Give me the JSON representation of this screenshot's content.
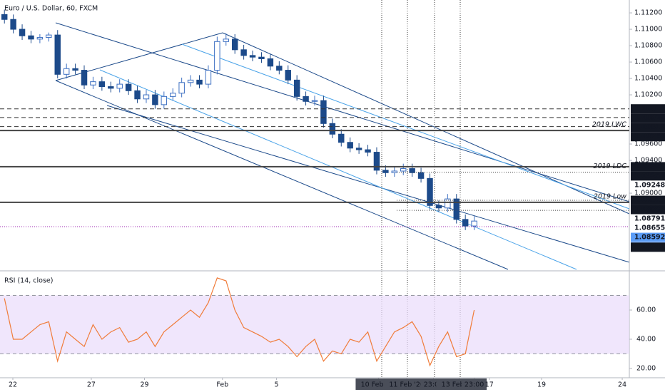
{
  "chart_data": [
    {
      "type": "candlestick",
      "title": "Euro / U.S. Dollar, 60, FXCM",
      "up_color": "#3c6fc2",
      "down_color": "#1c4a8a",
      "open": [
        1.1118,
        1.1112,
        1.11,
        1.1092,
        1.1088,
        1.109,
        1.1093,
        1.1045,
        1.1052,
        1.105,
        1.1032,
        1.1036,
        1.103,
        1.1028,
        1.1033,
        1.1025,
        1.1015,
        1.102,
        1.1008,
        1.1018,
        1.1022,
        1.1035,
        1.1038,
        1.1033,
        1.105,
        1.1085,
        1.1088,
        1.1075,
        1.1068,
        1.1066,
        1.1064,
        1.1055,
        1.105,
        1.1038,
        1.1018,
        1.1012,
        1.1013,
        1.0985,
        1.0972,
        1.0962,
        1.0955,
        1.0953,
        1.095,
        1.0928,
        1.0925,
        1.0927,
        1.093,
        1.0925,
        1.0918,
        1.0885,
        1.0882,
        1.0893,
        1.0868,
        1.086
      ],
      "high": [
        1.1124,
        1.1118,
        1.1106,
        1.1098,
        1.1094,
        1.1096,
        1.1099,
        1.1058,
        1.1058,
        1.1056,
        1.1042,
        1.1042,
        1.1036,
        1.1039,
        1.1039,
        1.1031,
        1.1026,
        1.1026,
        1.1024,
        1.1028,
        1.1041,
        1.1044,
        1.1044,
        1.1056,
        1.1091,
        1.1095,
        1.1094,
        1.1081,
        1.1074,
        1.1072,
        1.107,
        1.1061,
        1.1056,
        1.1044,
        1.1024,
        1.1019,
        1.1019,
        1.0991,
        1.0978,
        1.0968,
        1.0961,
        1.0959,
        1.0956,
        1.0934,
        1.0933,
        1.0936,
        1.0936,
        1.0931,
        1.0924,
        1.0891,
        1.0899,
        1.0899,
        1.0874,
        1.0872
      ],
      "low": [
        1.1107,
        1.1095,
        1.1087,
        1.1083,
        1.1083,
        1.1085,
        1.104,
        1.104,
        1.1045,
        1.1027,
        1.1027,
        1.1025,
        1.1023,
        1.1023,
        1.102,
        1.101,
        1.101,
        1.1003,
        1.1003,
        1.1013,
        1.1017,
        1.103,
        1.1028,
        1.1028,
        1.1045,
        1.108,
        1.107,
        1.1063,
        1.1061,
        1.1059,
        1.105,
        1.1045,
        1.1033,
        1.1013,
        1.1007,
        1.1007,
        1.098,
        1.0967,
        1.0957,
        1.095,
        1.0948,
        1.0945,
        1.0923,
        1.092,
        1.092,
        1.0922,
        1.092,
        1.0913,
        1.088,
        1.0877,
        1.0877,
        1.0863,
        1.0855,
        1.0855
      ],
      "close": [
        1.1112,
        1.11,
        1.1092,
        1.1088,
        1.109,
        1.1093,
        1.1045,
        1.1052,
        1.105,
        1.1032,
        1.1036,
        1.103,
        1.1028,
        1.1033,
        1.1025,
        1.1015,
        1.102,
        1.1008,
        1.1018,
        1.1022,
        1.1035,
        1.1038,
        1.1033,
        1.105,
        1.1085,
        1.1088,
        1.1075,
        1.1068,
        1.1066,
        1.1064,
        1.1055,
        1.105,
        1.1038,
        1.1018,
        1.1012,
        1.1013,
        1.0985,
        1.0972,
        1.0962,
        1.0955,
        1.0953,
        1.095,
        1.0928,
        1.0925,
        1.0927,
        1.093,
        1.0925,
        1.0918,
        1.0885,
        1.0882,
        1.0893,
        1.0868,
        1.086,
        1.0866
      ],
      "xlim": [
        -0.5,
        70.5
      ],
      "ylim": [
        1.0807,
        1.11357
      ],
      "yticks": [
        {
          "value": 1.112,
          "label": "1.11200"
        },
        {
          "value": 1.11,
          "label": "1.11000"
        },
        {
          "value": 1.108,
          "label": "1.10800"
        },
        {
          "value": 1.106,
          "label": "1.10600"
        },
        {
          "value": 1.104,
          "label": "1.10400"
        },
        {
          "value": 1.102,
          "label": "1.10200"
        },
        {
          "value": 1.096,
          "label": "1.09600"
        },
        {
          "value": 1.094,
          "label": "1.09400"
        },
        {
          "value": 1.09,
          "label": "1.09000"
        }
      ],
      "levels": [
        {
          "value": 1.10029,
          "line": "dashed",
          "color": "#131722"
        },
        {
          "value": 1.09923,
          "line": "dashed",
          "color": "#131722"
        },
        {
          "value": 1.09812,
          "line": "dashed",
          "color": "#131722"
        },
        {
          "value": 1.09765,
          "line": "solid",
          "color": "#131722",
          "note": "2019 LWC"
        },
        {
          "value": 1.09323,
          "line": "solid",
          "color": "#131722"
        },
        {
          "value": 1.09256,
          "line": "dotted",
          "color": "#131722",
          "note": "2019 LDC"
        },
        {
          "value": 1.09248,
          "line": "none",
          "color": "#ffffff"
        },
        {
          "value": 1.08913,
          "line": "dotted",
          "color": "#131722"
        },
        {
          "value": 1.08889,
          "line": "solid",
          "color": "#131722",
          "note": "2019 Low"
        },
        {
          "value": 1.08791,
          "line": "dotted",
          "color": "#ffffff"
        },
        {
          "value": 1.08655,
          "line": "none",
          "color": "#ffffff"
        },
        {
          "value": 1.08592,
          "line": "current",
          "color": "#5b9cf6",
          "note": "02:02"
        },
        {
          "value": 1.08341,
          "line": "none",
          "color": "#131722"
        }
      ]
    },
    {
      "type": "line",
      "title": "RSI (14, close)",
      "color": "#f07c3a",
      "values": [
        68,
        40,
        40,
        45,
        50,
        52,
        25,
        45,
        40,
        35,
        50,
        40,
        45,
        48,
        38,
        40,
        45,
        35,
        45,
        50,
        55,
        60,
        55,
        65,
        82,
        80,
        60,
        48,
        45,
        42,
        38,
        40,
        35,
        28,
        35,
        40,
        25,
        32,
        30,
        40,
        38,
        45,
        25,
        35,
        45,
        48,
        52,
        42,
        22,
        35,
        45,
        28,
        30,
        60
      ],
      "band": [
        30,
        70
      ],
      "band_color": "#e9dcfb",
      "xlim": [
        -0.5,
        70.5
      ],
      "ylim": [
        14.6,
        84.4
      ],
      "yticks": [
        {
          "value": 60,
          "label": "60.00"
        },
        {
          "value": 40,
          "label": "40.00"
        },
        {
          "value": 20,
          "label": "20.00"
        }
      ],
      "xticks": [
        {
          "value": 0.95,
          "label": "22"
        },
        {
          "value": 9.8,
          "label": "27"
        },
        {
          "value": 15.8,
          "label": "29"
        },
        {
          "value": 24.6,
          "label": "Feb"
        },
        {
          "value": 30.7,
          "label": "5"
        },
        {
          "value": 42.2,
          "label": "10 Feb '20",
          "boxed": true
        },
        {
          "value": 45.4,
          "label": "11 Feb '20",
          "boxed": true
        },
        {
          "value": 48.4,
          "label": "23:00",
          "boxed": true
        },
        {
          "value": 51.3,
          "label": "13 Feb '20",
          "boxed": true
        },
        {
          "value": 53,
          "label": "23:00",
          "boxed": true
        },
        {
          "value": 54.7,
          "label": "17"
        },
        {
          "value": 60.6,
          "label": "19"
        },
        {
          "value": 69.7,
          "label": "24"
        }
      ]
    }
  ]
}
